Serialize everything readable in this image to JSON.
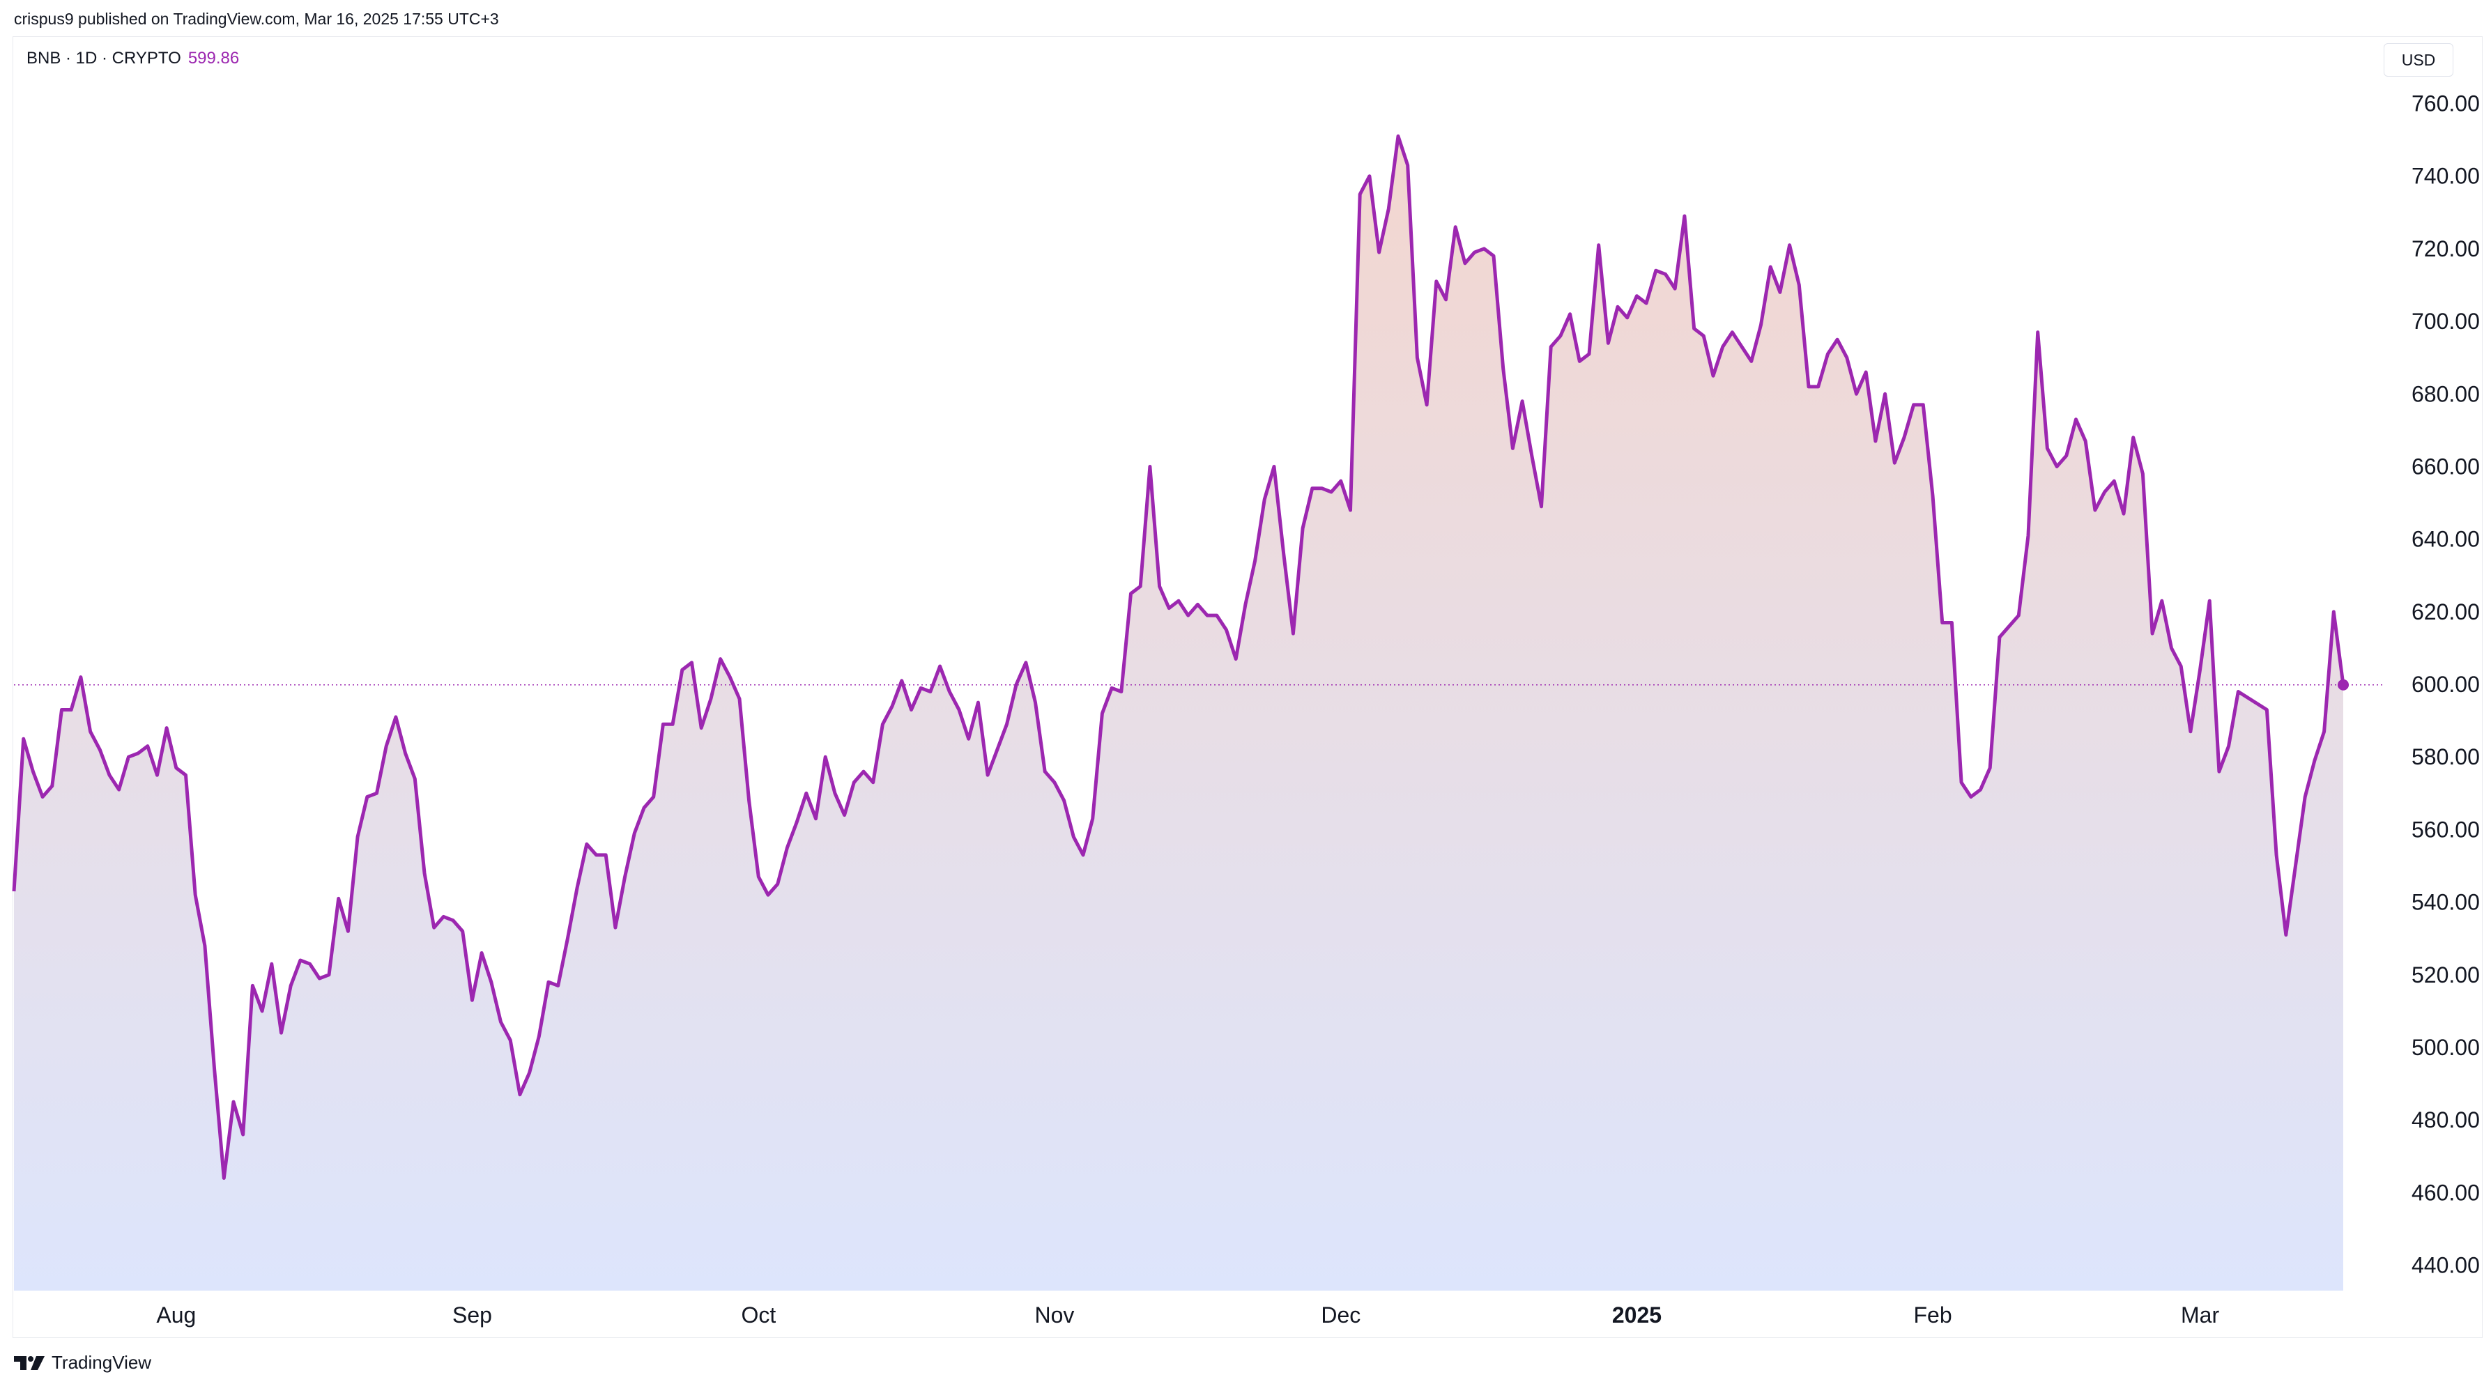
{
  "header": {
    "publish_text": "crispus9 published on TradingView.com, Mar 16, 2025 17:55 UTC+3"
  },
  "symbol": {
    "label": "BNB · 1D · CRYPTO",
    "price": "599.86"
  },
  "currency": "USD",
  "footer": {
    "brand": "TradingView",
    "logo_icon": "tradingview-logo-icon"
  },
  "colors": {
    "line": "#9c27b0",
    "fill_top": "#f3d6cf",
    "fill_bottom": "#dde5fc",
    "price_line": "#9c27b0"
  },
  "chart_data": {
    "type": "area",
    "series_description": "BNB daily close price, USD",
    "ylim": [
      433,
      777
    ],
    "yticks": [
      440,
      460,
      480,
      500,
      520,
      540,
      560,
      580,
      600,
      620,
      640,
      660,
      680,
      700,
      720,
      740,
      760
    ],
    "ytick_labels": [
      "440.00",
      "460.00",
      "480.00",
      "500.00",
      "520.00",
      "540.00",
      "560.00",
      "580.00",
      "600.00",
      "620.00",
      "640.00",
      "660.00",
      "680.00",
      "700.00",
      "720.00",
      "740.00",
      "760.00"
    ],
    "x_start": "2024-07-15",
    "x_end": "2025-03-16",
    "xticks": [
      {
        "label": "Aug",
        "date": "2024-08-01",
        "bold": false
      },
      {
        "label": "Sep",
        "date": "2024-09-01",
        "bold": false
      },
      {
        "label": "Oct",
        "date": "2024-10-01",
        "bold": false
      },
      {
        "label": "Nov",
        "date": "2024-11-01",
        "bold": false
      },
      {
        "label": "Dec",
        "date": "2024-12-01",
        "bold": false
      },
      {
        "label": "2025",
        "date": "2025-01-01",
        "bold": true
      },
      {
        "label": "Feb",
        "date": "2025-02-01",
        "bold": false
      },
      {
        "label": "Mar",
        "date": "2025-03-01",
        "bold": false
      }
    ],
    "current_price": 599.86,
    "points": [
      [
        "2024-07-15",
        543
      ],
      [
        "2024-07-16",
        585
      ],
      [
        "2024-07-17",
        576
      ],
      [
        "2024-07-18",
        569
      ],
      [
        "2024-07-19",
        572
      ],
      [
        "2024-07-20",
        593
      ],
      [
        "2024-07-21",
        593
      ],
      [
        "2024-07-22",
        602
      ],
      [
        "2024-07-23",
        587
      ],
      [
        "2024-07-24",
        582
      ],
      [
        "2024-07-25",
        575
      ],
      [
        "2024-07-26",
        571
      ],
      [
        "2024-07-27",
        580
      ],
      [
        "2024-07-28",
        581
      ],
      [
        "2024-07-29",
        583
      ],
      [
        "2024-07-30",
        575
      ],
      [
        "2024-07-31",
        588
      ],
      [
        "2024-08-01",
        577
      ],
      [
        "2024-08-02",
        575
      ],
      [
        "2024-08-03",
        542
      ],
      [
        "2024-08-04",
        528
      ],
      [
        "2024-08-05",
        494
      ],
      [
        "2024-08-06",
        464
      ],
      [
        "2024-08-07",
        485
      ],
      [
        "2024-08-08",
        476
      ],
      [
        "2024-08-09",
        517
      ],
      [
        "2024-08-10",
        510
      ],
      [
        "2024-08-11",
        523
      ],
      [
        "2024-08-12",
        504
      ],
      [
        "2024-08-13",
        517
      ],
      [
        "2024-08-14",
        524
      ],
      [
        "2024-08-15",
        523
      ],
      [
        "2024-08-16",
        519
      ],
      [
        "2024-08-17",
        520
      ],
      [
        "2024-08-18",
        541
      ],
      [
        "2024-08-19",
        532
      ],
      [
        "2024-08-20",
        558
      ],
      [
        "2024-08-21",
        569
      ],
      [
        "2024-08-22",
        570
      ],
      [
        "2024-08-23",
        583
      ],
      [
        "2024-08-24",
        591
      ],
      [
        "2024-08-25",
        581
      ],
      [
        "2024-08-26",
        574
      ],
      [
        "2024-08-27",
        548
      ],
      [
        "2024-08-28",
        533
      ],
      [
        "2024-08-29",
        536
      ],
      [
        "2024-08-30",
        535
      ],
      [
        "2024-08-31",
        532
      ],
      [
        "2024-09-01",
        513
      ],
      [
        "2024-09-02",
        526
      ],
      [
        "2024-09-03",
        518
      ],
      [
        "2024-09-04",
        507
      ],
      [
        "2024-09-05",
        502
      ],
      [
        "2024-09-06",
        487
      ],
      [
        "2024-09-07",
        493
      ],
      [
        "2024-09-08",
        503
      ],
      [
        "2024-09-09",
        518
      ],
      [
        "2024-09-10",
        517
      ],
      [
        "2024-09-11",
        530
      ],
      [
        "2024-09-12",
        544
      ],
      [
        "2024-09-13",
        556
      ],
      [
        "2024-09-14",
        553
      ],
      [
        "2024-09-15",
        553
      ],
      [
        "2024-09-16",
        533
      ],
      [
        "2024-09-17",
        547
      ],
      [
        "2024-09-18",
        559
      ],
      [
        "2024-09-19",
        566
      ],
      [
        "2024-09-20",
        569
      ],
      [
        "2024-09-21",
        589
      ],
      [
        "2024-09-22",
        589
      ],
      [
        "2024-09-23",
        604
      ],
      [
        "2024-09-24",
        606
      ],
      [
        "2024-09-25",
        588
      ],
      [
        "2024-09-26",
        596
      ],
      [
        "2024-09-27",
        607
      ],
      [
        "2024-09-28",
        602
      ],
      [
        "2024-09-29",
        596
      ],
      [
        "2024-09-30",
        568
      ],
      [
        "2024-10-01",
        547
      ],
      [
        "2024-10-02",
        542
      ],
      [
        "2024-10-03",
        545
      ],
      [
        "2024-10-04",
        555
      ],
      [
        "2024-10-05",
        562
      ],
      [
        "2024-10-06",
        570
      ],
      [
        "2024-10-07",
        563
      ],
      [
        "2024-10-08",
        580
      ],
      [
        "2024-10-09",
        570
      ],
      [
        "2024-10-10",
        564
      ],
      [
        "2024-10-11",
        573
      ],
      [
        "2024-10-12",
        576
      ],
      [
        "2024-10-13",
        573
      ],
      [
        "2024-10-14",
        589
      ],
      [
        "2024-10-15",
        594
      ],
      [
        "2024-10-16",
        601
      ],
      [
        "2024-10-17",
        593
      ],
      [
        "2024-10-18",
        599
      ],
      [
        "2024-10-19",
        598
      ],
      [
        "2024-10-20",
        605
      ],
      [
        "2024-10-21",
        598
      ],
      [
        "2024-10-22",
        593
      ],
      [
        "2024-10-23",
        585
      ],
      [
        "2024-10-24",
        595
      ],
      [
        "2024-10-25",
        575
      ],
      [
        "2024-10-26",
        582
      ],
      [
        "2024-10-27",
        589
      ],
      [
        "2024-10-28",
        600
      ],
      [
        "2024-10-29",
        606
      ],
      [
        "2024-10-30",
        595
      ],
      [
        "2024-10-31",
        576
      ],
      [
        "2024-11-01",
        573
      ],
      [
        "2024-11-02",
        568
      ],
      [
        "2024-11-03",
        558
      ],
      [
        "2024-11-04",
        553
      ],
      [
        "2024-11-05",
        563
      ],
      [
        "2024-11-06",
        592
      ],
      [
        "2024-11-07",
        599
      ],
      [
        "2024-11-08",
        598
      ],
      [
        "2024-11-09",
        625
      ],
      [
        "2024-11-10",
        627
      ],
      [
        "2024-11-11",
        660
      ],
      [
        "2024-11-12",
        627
      ],
      [
        "2024-11-13",
        621
      ],
      [
        "2024-11-14",
        623
      ],
      [
        "2024-11-15",
        619
      ],
      [
        "2024-11-16",
        622
      ],
      [
        "2024-11-17",
        619
      ],
      [
        "2024-11-18",
        619
      ],
      [
        "2024-11-19",
        615
      ],
      [
        "2024-11-20",
        607
      ],
      [
        "2024-11-21",
        622
      ],
      [
        "2024-11-22",
        634
      ],
      [
        "2024-11-23",
        651
      ],
      [
        "2024-11-24",
        660
      ],
      [
        "2024-11-25",
        636
      ],
      [
        "2024-11-26",
        614
      ],
      [
        "2024-11-27",
        643
      ],
      [
        "2024-11-28",
        654
      ],
      [
        "2024-11-29",
        654
      ],
      [
        "2024-11-30",
        653
      ],
      [
        "2024-12-01",
        656
      ],
      [
        "2024-12-02",
        648
      ],
      [
        "2024-12-03",
        735
      ],
      [
        "2024-12-04",
        740
      ],
      [
        "2024-12-05",
        719
      ],
      [
        "2024-12-06",
        731
      ],
      [
        "2024-12-07",
        751
      ],
      [
        "2024-12-08",
        743
      ],
      [
        "2024-12-09",
        690
      ],
      [
        "2024-12-10",
        677
      ],
      [
        "2024-12-11",
        711
      ],
      [
        "2024-12-12",
        706
      ],
      [
        "2024-12-13",
        726
      ],
      [
        "2024-12-14",
        716
      ],
      [
        "2024-12-15",
        719
      ],
      [
        "2024-12-16",
        720
      ],
      [
        "2024-12-17",
        718
      ],
      [
        "2024-12-18",
        687
      ],
      [
        "2024-12-19",
        665
      ],
      [
        "2024-12-20",
        678
      ],
      [
        "2024-12-21",
        663
      ],
      [
        "2024-12-22",
        649
      ],
      [
        "2024-12-23",
        693
      ],
      [
        "2024-12-24",
        696
      ],
      [
        "2024-12-25",
        702
      ],
      [
        "2024-12-26",
        689
      ],
      [
        "2024-12-27",
        691
      ],
      [
        "2024-12-28",
        721
      ],
      [
        "2024-12-29",
        694
      ],
      [
        "2024-12-30",
        704
      ],
      [
        "2024-12-31",
        701
      ],
      [
        "2025-01-01",
        707
      ],
      [
        "2025-01-02",
        705
      ],
      [
        "2025-01-03",
        714
      ],
      [
        "2025-01-04",
        713
      ],
      [
        "2025-01-05",
        709
      ],
      [
        "2025-01-06",
        729
      ],
      [
        "2025-01-07",
        698
      ],
      [
        "2025-01-08",
        696
      ],
      [
        "2025-01-09",
        685
      ],
      [
        "2025-01-10",
        693
      ],
      [
        "2025-01-11",
        697
      ],
      [
        "2025-01-12",
        693
      ],
      [
        "2025-01-13",
        689
      ],
      [
        "2025-01-14",
        699
      ],
      [
        "2025-01-15",
        715
      ],
      [
        "2025-01-16",
        708
      ],
      [
        "2025-01-17",
        721
      ],
      [
        "2025-01-18",
        710
      ],
      [
        "2025-01-19",
        682
      ],
      [
        "2025-01-20",
        682
      ],
      [
        "2025-01-21",
        691
      ],
      [
        "2025-01-22",
        695
      ],
      [
        "2025-01-23",
        690
      ],
      [
        "2025-01-24",
        680
      ],
      [
        "2025-01-25",
        686
      ],
      [
        "2025-01-26",
        667
      ],
      [
        "2025-01-27",
        680
      ],
      [
        "2025-01-28",
        661
      ],
      [
        "2025-01-29",
        668
      ],
      [
        "2025-01-30",
        677
      ],
      [
        "2025-01-31",
        677
      ],
      [
        "2025-02-01",
        652
      ],
      [
        "2025-02-02",
        617
      ],
      [
        "2025-02-03",
        617
      ],
      [
        "2025-02-04",
        573
      ],
      [
        "2025-02-05",
        569
      ],
      [
        "2025-02-06",
        571
      ],
      [
        "2025-02-07",
        577
      ],
      [
        "2025-02-08",
        613
      ],
      [
        "2025-02-09",
        616
      ],
      [
        "2025-02-10",
        619
      ],
      [
        "2025-02-11",
        641
      ],
      [
        "2025-02-12",
        697
      ],
      [
        "2025-02-13",
        665
      ],
      [
        "2025-02-14",
        660
      ],
      [
        "2025-02-15",
        663
      ],
      [
        "2025-02-16",
        673
      ],
      [
        "2025-02-17",
        667
      ],
      [
        "2025-02-18",
        648
      ],
      [
        "2025-02-19",
        653
      ],
      [
        "2025-02-20",
        656
      ],
      [
        "2025-02-21",
        647
      ],
      [
        "2025-02-22",
        668
      ],
      [
        "2025-02-23",
        658
      ],
      [
        "2025-02-24",
        614
      ],
      [
        "2025-02-25",
        623
      ],
      [
        "2025-02-26",
        610
      ],
      [
        "2025-02-27",
        605
      ],
      [
        "2025-02-28",
        587
      ],
      [
        "2025-03-01",
        604
      ],
      [
        "2025-03-02",
        623
      ],
      [
        "2025-03-03",
        576
      ],
      [
        "2025-03-04",
        583
      ],
      [
        "2025-03-05",
        598
      ],
      [
        "2025-03-08",
        593
      ],
      [
        "2025-03-09",
        553
      ],
      [
        "2025-03-10",
        531
      ],
      [
        "2025-03-11",
        550
      ],
      [
        "2025-03-12",
        569
      ],
      [
        "2025-03-13",
        579
      ],
      [
        "2025-03-14",
        587
      ],
      [
        "2025-03-15",
        620
      ],
      [
        "2025-03-16",
        599.86
      ]
    ]
  }
}
